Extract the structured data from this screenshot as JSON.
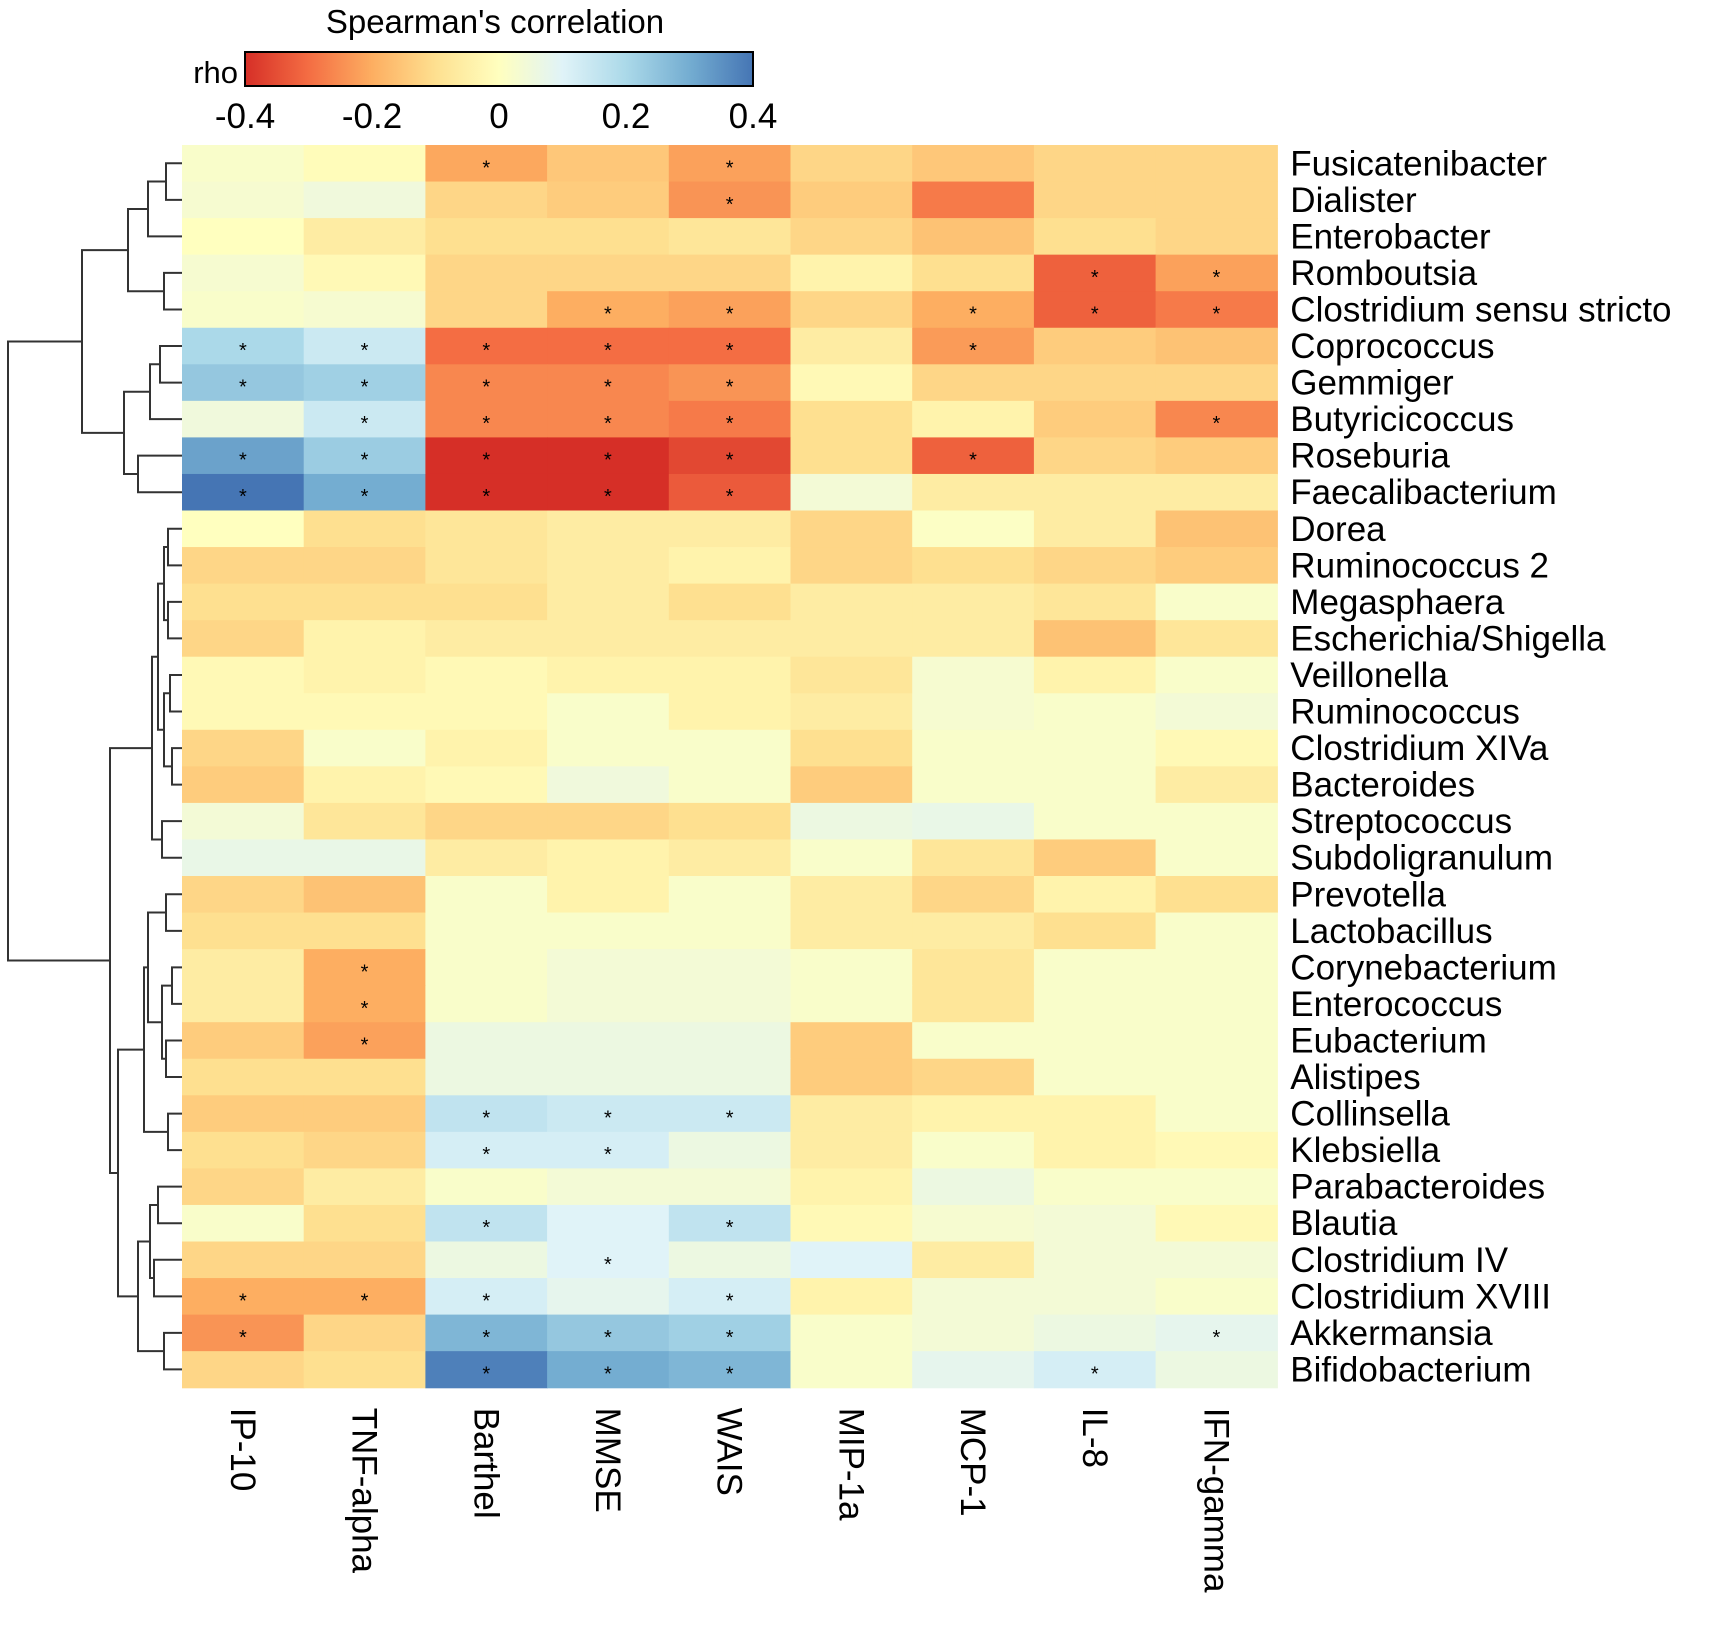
{
  "chart_data": {
    "type": "heatmap",
    "colorbar": {
      "title": "Spearman's correlation",
      "label": "rho",
      "ticks": [
        "-0.4",
        "-0.2",
        "0",
        "0.2",
        "0.4"
      ],
      "range": [
        -0.4,
        0.4
      ],
      "colors": [
        "#d62f27",
        "#f46d43",
        "#fdae61",
        "#fee090",
        "#ffffbf",
        "#e0f3f8",
        "#abd9e9",
        "#74add1",
        "#4575b4"
      ]
    },
    "columns": [
      "IP-10",
      "TNF-alpha",
      "Barthel",
      "MMSE",
      "WAIS",
      "MIP-1a",
      "MCP-1",
      "IL-8",
      "IFN-gamma"
    ],
    "rows": [
      {
        "name": "Fusicatenibacter",
        "values": [
          0.02,
          -0.01,
          -0.21,
          -0.15,
          -0.22,
          -0.12,
          -0.15,
          -0.12,
          -0.12
        ],
        "sig": [
          0,
          0,
          1,
          0,
          1,
          0,
          0,
          0,
          0
        ]
      },
      {
        "name": "Dialister",
        "values": [
          0.03,
          0.05,
          -0.12,
          -0.14,
          -0.24,
          -0.14,
          -0.28,
          -0.12,
          -0.12
        ],
        "sig": [
          0,
          0,
          0,
          0,
          1,
          0,
          0,
          0,
          0
        ]
      },
      {
        "name": "Enterobacter",
        "values": [
          0.0,
          -0.06,
          -0.1,
          -0.1,
          -0.08,
          -0.12,
          -0.16,
          -0.1,
          -0.12
        ],
        "sig": [
          0,
          0,
          0,
          0,
          0,
          0,
          0,
          0,
          0
        ]
      },
      {
        "name": "Romboutsia",
        "values": [
          0.03,
          -0.02,
          -0.12,
          -0.12,
          -0.12,
          -0.04,
          -0.1,
          -0.32,
          -0.22
        ],
        "sig": [
          0,
          0,
          0,
          0,
          0,
          0,
          0,
          1,
          1
        ]
      },
      {
        "name": "Clostridium sensu stricto",
        "values": [
          0.02,
          0.03,
          -0.12,
          -0.2,
          -0.22,
          -0.12,
          -0.2,
          -0.32,
          -0.28
        ],
        "sig": [
          0,
          0,
          0,
          1,
          1,
          0,
          1,
          1,
          1
        ]
      },
      {
        "name": "Coprococcus",
        "values": [
          0.2,
          0.14,
          -0.3,
          -0.3,
          -0.3,
          -0.06,
          -0.23,
          -0.14,
          -0.16
        ],
        "sig": [
          1,
          1,
          1,
          1,
          1,
          0,
          1,
          0,
          0
        ]
      },
      {
        "name": "Gemmiger",
        "values": [
          0.24,
          0.22,
          -0.26,
          -0.26,
          -0.24,
          -0.02,
          -0.12,
          -0.12,
          -0.12
        ],
        "sig": [
          1,
          1,
          1,
          1,
          1,
          0,
          0,
          0,
          0
        ]
      },
      {
        "name": "Butyricicoccus",
        "values": [
          0.05,
          0.14,
          -0.26,
          -0.26,
          -0.28,
          -0.1,
          -0.04,
          -0.14,
          -0.26
        ],
        "sig": [
          0,
          1,
          1,
          1,
          1,
          0,
          0,
          0,
          1
        ]
      },
      {
        "name": "Roseburia",
        "values": [
          0.32,
          0.23,
          -0.4,
          -0.4,
          -0.36,
          -0.1,
          -0.32,
          -0.12,
          -0.14
        ],
        "sig": [
          1,
          1,
          1,
          1,
          1,
          0,
          1,
          0,
          0
        ]
      },
      {
        "name": "Faecalibacterium",
        "values": [
          0.4,
          0.3,
          -0.4,
          -0.4,
          -0.33,
          0.04,
          -0.06,
          -0.06,
          -0.06
        ],
        "sig": [
          1,
          1,
          1,
          1,
          1,
          0,
          0,
          0,
          0
        ]
      },
      {
        "name": "Dorea",
        "values": [
          0.0,
          -0.1,
          -0.08,
          -0.06,
          -0.06,
          -0.12,
          0.01,
          -0.06,
          -0.16
        ],
        "sig": [
          0,
          0,
          0,
          0,
          0,
          0,
          0,
          0,
          0
        ]
      },
      {
        "name": "Ruminococcus 2",
        "values": [
          -0.12,
          -0.12,
          -0.08,
          -0.06,
          -0.04,
          -0.12,
          -0.1,
          -0.12,
          -0.14
        ],
        "sig": [
          0,
          0,
          0,
          0,
          0,
          0,
          0,
          0,
          0
        ]
      },
      {
        "name": "Megasphaera",
        "values": [
          -0.1,
          -0.1,
          -0.1,
          -0.06,
          -0.1,
          -0.06,
          -0.06,
          -0.08,
          0.02
        ],
        "sig": [
          0,
          0,
          0,
          0,
          0,
          0,
          0,
          0,
          0
        ]
      },
      {
        "name": "Escherichia/Shigella",
        "values": [
          -0.12,
          -0.04,
          -0.06,
          -0.06,
          -0.06,
          -0.06,
          -0.06,
          -0.16,
          -0.08
        ],
        "sig": [
          0,
          0,
          0,
          0,
          0,
          0,
          0,
          0,
          0
        ]
      },
      {
        "name": "Veillonella",
        "values": [
          -0.02,
          -0.04,
          -0.02,
          -0.04,
          -0.04,
          -0.08,
          0.03,
          -0.04,
          0.02
        ],
        "sig": [
          0,
          0,
          0,
          0,
          0,
          0,
          0,
          0,
          0
        ]
      },
      {
        "name": "Ruminococcus",
        "values": [
          -0.02,
          -0.02,
          -0.02,
          0.02,
          -0.04,
          -0.06,
          0.03,
          0.02,
          0.04
        ],
        "sig": [
          0,
          0,
          0,
          0,
          0,
          0,
          0,
          0,
          0
        ]
      },
      {
        "name": "Clostridium XIVa",
        "values": [
          -0.12,
          0.02,
          -0.04,
          0.02,
          0.02,
          -0.1,
          0.02,
          0.02,
          -0.02
        ],
        "sig": [
          0,
          0,
          0,
          0,
          0,
          0,
          0,
          0,
          0
        ]
      },
      {
        "name": "Bacteroides",
        "values": [
          -0.14,
          -0.04,
          -0.02,
          0.05,
          0.02,
          -0.14,
          0.02,
          0.02,
          -0.06
        ],
        "sig": [
          0,
          0,
          0,
          0,
          0,
          0,
          0,
          0,
          0
        ]
      },
      {
        "name": "Streptococcus",
        "values": [
          0.04,
          -0.08,
          -0.12,
          -0.12,
          -0.1,
          0.06,
          0.07,
          0.02,
          0.02
        ],
        "sig": [
          0,
          0,
          0,
          0,
          0,
          0,
          0,
          0,
          0
        ]
      },
      {
        "name": "Subdoligranulum",
        "values": [
          0.07,
          0.07,
          -0.06,
          -0.04,
          -0.06,
          0.02,
          -0.08,
          -0.14,
          0.02
        ],
        "sig": [
          0,
          0,
          0,
          0,
          0,
          0,
          0,
          0,
          0
        ]
      },
      {
        "name": "Prevotella",
        "values": [
          -0.12,
          -0.16,
          0.02,
          -0.04,
          0.02,
          -0.06,
          -0.12,
          -0.04,
          -0.1
        ],
        "sig": [
          0,
          0,
          0,
          0,
          0,
          0,
          0,
          0,
          0
        ]
      },
      {
        "name": "Lactobacillus",
        "values": [
          -0.1,
          -0.1,
          0.02,
          0.02,
          0.02,
          -0.06,
          -0.06,
          -0.1,
          0.02
        ],
        "sig": [
          0,
          0,
          0,
          0,
          0,
          0,
          0,
          0,
          0
        ]
      },
      {
        "name": "Corynebacterium",
        "values": [
          -0.06,
          -0.2,
          0.02,
          0.04,
          0.04,
          0.02,
          -0.08,
          0.02,
          0.02
        ],
        "sig": [
          0,
          1,
          0,
          0,
          0,
          0,
          0,
          0,
          0
        ]
      },
      {
        "name": "Enterococcus",
        "values": [
          -0.06,
          -0.2,
          0.02,
          0.04,
          0.04,
          0.02,
          -0.08,
          0.02,
          0.02
        ],
        "sig": [
          0,
          1,
          0,
          0,
          0,
          0,
          0,
          0,
          0
        ]
      },
      {
        "name": "Eubacterium",
        "values": [
          -0.14,
          -0.22,
          0.06,
          0.06,
          0.06,
          -0.14,
          0.02,
          0.02,
          0.02
        ],
        "sig": [
          0,
          1,
          0,
          0,
          0,
          0,
          0,
          0,
          0
        ]
      },
      {
        "name": "Alistipes",
        "values": [
          -0.1,
          -0.1,
          0.06,
          0.06,
          0.06,
          -0.14,
          -0.12,
          0.02,
          0.02
        ],
        "sig": [
          0,
          0,
          0,
          0,
          0,
          0,
          0,
          0,
          0
        ]
      },
      {
        "name": "Collinsella",
        "values": [
          -0.14,
          -0.14,
          0.16,
          0.14,
          0.14,
          -0.06,
          -0.04,
          -0.04,
          0.02
        ],
        "sig": [
          0,
          0,
          1,
          1,
          1,
          0,
          0,
          0,
          0
        ]
      },
      {
        "name": "Klebsiella",
        "values": [
          -0.1,
          -0.12,
          0.12,
          0.12,
          0.06,
          -0.06,
          0.02,
          -0.04,
          -0.02
        ],
        "sig": [
          0,
          0,
          1,
          1,
          0,
          0,
          0,
          0,
          0
        ]
      },
      {
        "name": "Parabacteroides",
        "values": [
          -0.12,
          -0.06,
          0.02,
          0.04,
          0.04,
          -0.04,
          0.06,
          0.02,
          0.02
        ],
        "sig": [
          0,
          0,
          0,
          0,
          0,
          0,
          0,
          0,
          0
        ]
      },
      {
        "name": "Blautia",
        "values": [
          0.02,
          -0.1,
          0.16,
          0.1,
          0.16,
          -0.02,
          0.03,
          0.04,
          -0.02
        ],
        "sig": [
          0,
          0,
          1,
          0,
          1,
          0,
          0,
          0,
          0
        ]
      },
      {
        "name": "Clostridium IV",
        "values": [
          -0.12,
          -0.12,
          0.06,
          0.1,
          0.06,
          0.1,
          -0.06,
          0.04,
          0.04
        ],
        "sig": [
          0,
          0,
          0,
          1,
          0,
          0,
          0,
          0,
          0
        ]
      },
      {
        "name": "Clostridium XVIII",
        "values": [
          -0.2,
          -0.2,
          0.12,
          0.08,
          0.12,
          -0.04,
          0.04,
          0.04,
          0.02
        ],
        "sig": [
          1,
          1,
          1,
          0,
          1,
          0,
          0,
          0,
          0
        ]
      },
      {
        "name": "Akkermansia",
        "values": [
          -0.24,
          -0.12,
          0.28,
          0.24,
          0.22,
          0.02,
          0.04,
          0.06,
          0.08
        ],
        "sig": [
          1,
          0,
          1,
          1,
          1,
          0,
          0,
          0,
          1
        ]
      },
      {
        "name": "Bifidobacterium",
        "values": [
          -0.12,
          -0.1,
          0.38,
          0.3,
          0.28,
          0.02,
          0.08,
          0.12,
          0.06
        ],
        "sig": [
          0,
          0,
          1,
          1,
          1,
          0,
          0,
          1,
          0
        ]
      }
    ],
    "significance_marker": "*",
    "dendrogram": "rows"
  }
}
